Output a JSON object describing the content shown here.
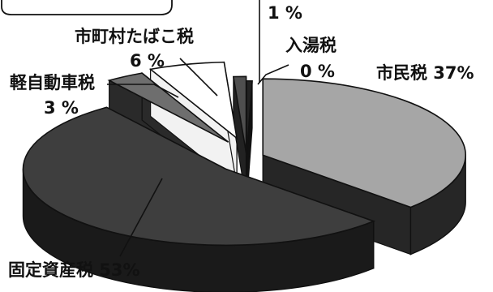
{
  "chart_data": {
    "type": "pie",
    "style": "3d-exploded",
    "unit": "%",
    "slices": [
      {
        "name": "市民税",
        "value": 37,
        "label": "市民税 37%",
        "color": "#a6a6a6",
        "side_color": "#262626"
      },
      {
        "name": "固定資産税",
        "value": 53,
        "label": "固定資産税 53%",
        "color": "#3e3e3e",
        "side_color": "#1a1a1a"
      },
      {
        "name": "軽自動車税",
        "value": 3,
        "label": "軽自動車税",
        "value_label": "3 %",
        "color": "#6e6e6e",
        "side_color": "#2a2a2a"
      },
      {
        "name": "市町村たばこ税",
        "value": 6,
        "label": "市町村たばこ税",
        "value_label": "6 %",
        "color": "#ffffff",
        "side_color": "#f2f2f2"
      },
      {
        "name": "",
        "value": 1,
        "label": "",
        "value_label": "1 %",
        "color": "#4f4f4f",
        "side_color": "#222222"
      },
      {
        "name": "入湯税",
        "value": 0,
        "label": "入湯税",
        "value_label": "0 %",
        "color": "#222222",
        "side_color": "#111111"
      }
    ]
  }
}
